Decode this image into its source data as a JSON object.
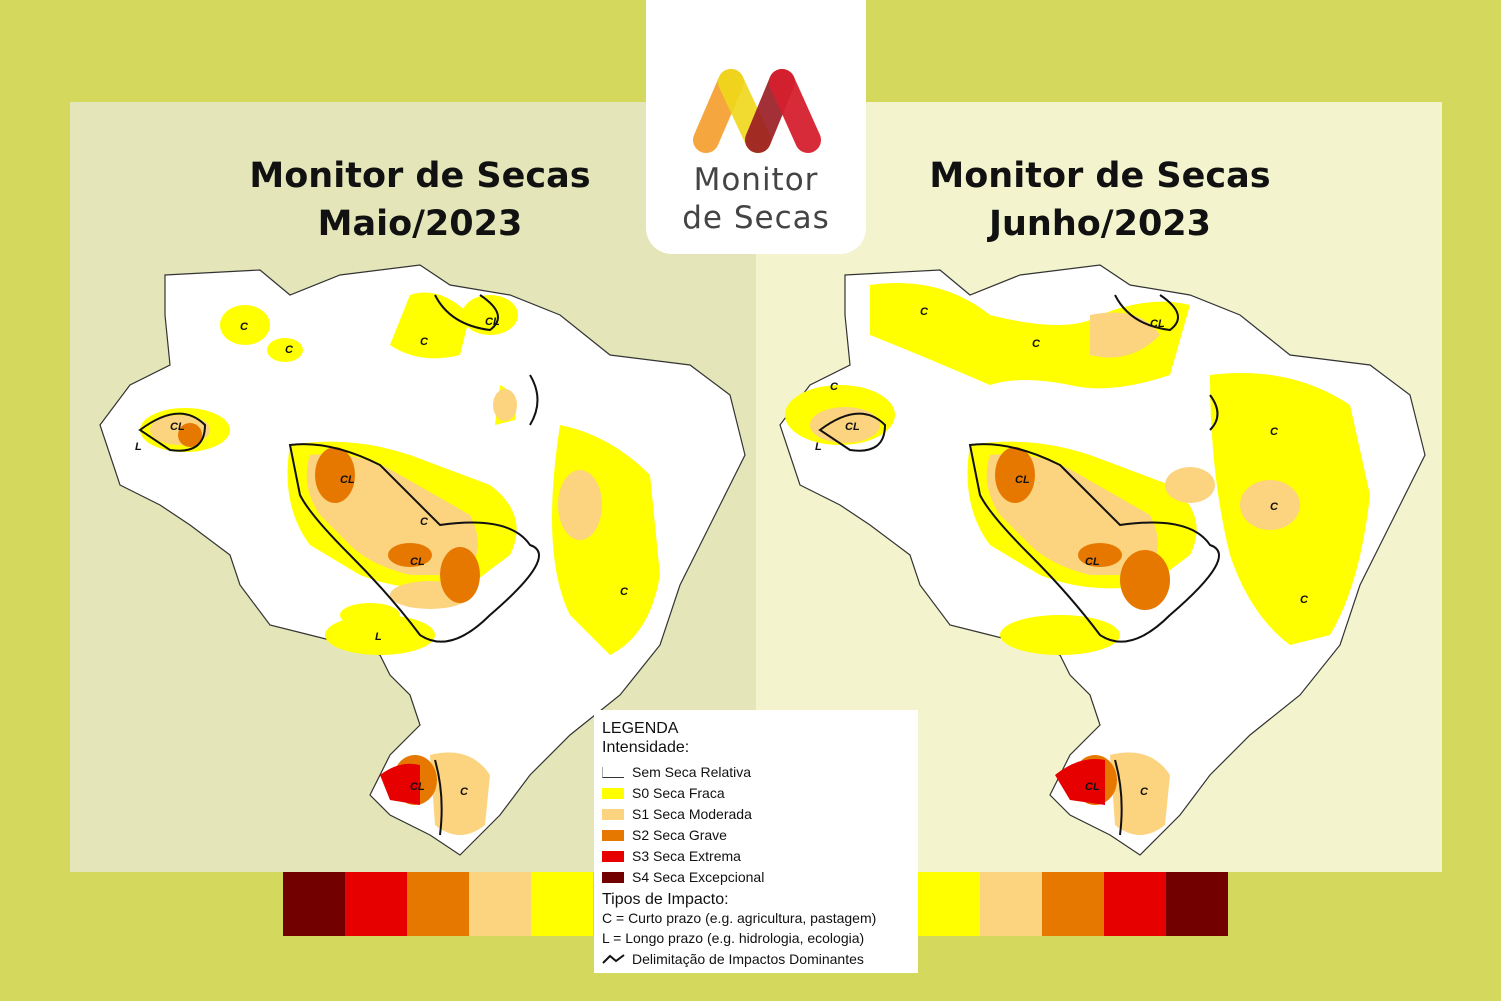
{
  "panels": {
    "left": {
      "title_line1": "Monitor de Secas",
      "title_line2": "Maio/2023"
    },
    "right": {
      "title_line1": "Monitor de Secas",
      "title_line2": "Junho/2023"
    }
  },
  "logo": {
    "line1": "Monitor",
    "line2": "de Secas",
    "colors": [
      "#f5a234",
      "#f0d81a",
      "#d6202f",
      "#9a1a22"
    ]
  },
  "map_labels": {
    "C": "C",
    "CL": "CL",
    "L": "L"
  },
  "legend": {
    "title": "LEGENDA",
    "intensity_header": "Intensidade:",
    "items": [
      {
        "label": "Sem Seca Relativa",
        "color": "#ffffff"
      },
      {
        "label": "S0 Seca Fraca",
        "color": "#ffff00"
      },
      {
        "label": "S1 Seca Moderada",
        "color": "#fcd37f"
      },
      {
        "label": "S2 Seca Grave",
        "color": "#e67800"
      },
      {
        "label": "S3 Seca Extrema",
        "color": "#e60000"
      },
      {
        "label": "S4 Seca Excepcional",
        "color": "#730000"
      }
    ],
    "impact_header": "Tipos de Impacto:",
    "impact_c": "C = Curto prazo (e.g. agricultura, pastagem)",
    "impact_l": "L = Longo prazo (e.g. hidrologia, ecologia)",
    "impact_line": "Delimitação de Impactos Dominantes"
  },
  "strip_left": [
    "#730000",
    "#e60000",
    "#e67800",
    "#fcd37f",
    "#ffff00"
  ],
  "strip_right": [
    "#ffff00",
    "#fcd37f",
    "#e67800",
    "#e60000",
    "#730000"
  ]
}
